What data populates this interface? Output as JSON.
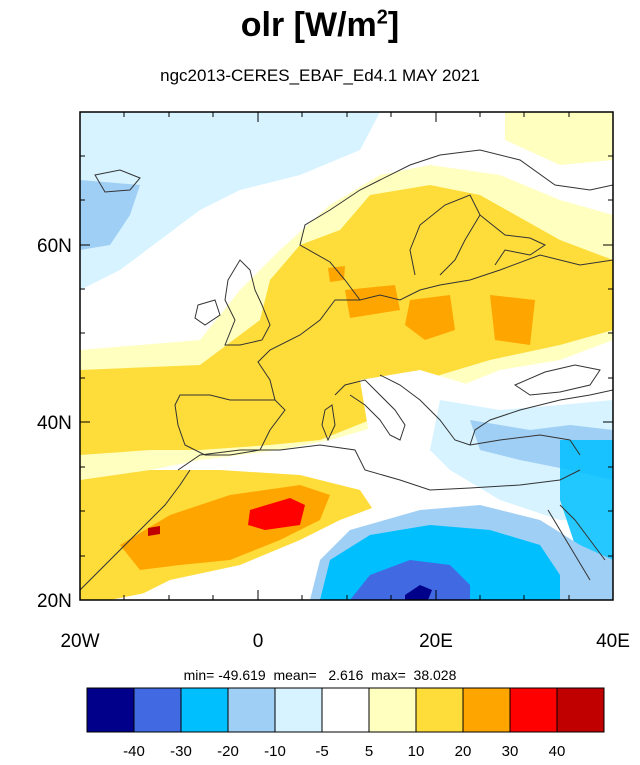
{
  "title": {
    "main": "olr [W/m",
    "sup": "2",
    "close": "]"
  },
  "subtitle": "ngc2013-CERES_EBAF_Ed4.1  MAY 2021",
  "stats": "min= -49.619  mean=   2.616  max=  38.028",
  "axes": {
    "lon_labels": [
      "20W",
      "0",
      "20E",
      "40E"
    ],
    "lat_labels": [
      "60N",
      "40N",
      "20N"
    ]
  },
  "colorbar": {
    "colors": [
      "#00008b",
      "#4169e1",
      "#00bfff",
      "#a0cff5",
      "#d6f3ff",
      "#ffffff",
      "#ffffc0",
      "#fedc3a",
      "#ffa500",
      "#ff0000",
      "#c00000"
    ],
    "labels": [
      "-40",
      "-30",
      "-20",
      "-10",
      "-5",
      "5",
      "10",
      "20",
      "30",
      "40"
    ]
  },
  "map_field": {
    "description_regions": [
      {
        "region": "Saharan NW Africa",
        "level": "20 to 40"
      },
      {
        "region": "Central/Eastern Europe",
        "level": "10 to 30"
      },
      {
        "region": "Eastern Sahara / Libya-Egypt",
        "level": "-40 to -10"
      },
      {
        "region": "Eastern Mediterranean",
        "level": "-20 to -5"
      },
      {
        "region": "North Atlantic",
        "level": "-20 to 5"
      }
    ]
  }
}
